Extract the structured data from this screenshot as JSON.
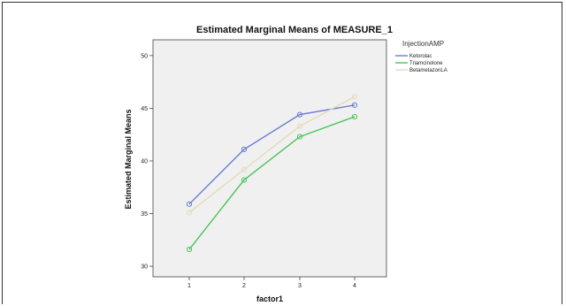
{
  "chart_data": {
    "type": "line",
    "title": "Estimated Marginal Means of MEASURE_1",
    "xlabel": "factor1",
    "ylabel": "Estimated Marginal Means",
    "categories": [
      "1",
      "2",
      "3",
      "4"
    ],
    "ylim": [
      29,
      51.5
    ],
    "yticks": [
      30,
      35,
      40,
      45,
      50
    ],
    "grid": false,
    "legend_title": "InjectionAMP",
    "legend_position": "right",
    "series": [
      {
        "name": "Ketorolac",
        "values": [
          35.9,
          41.1,
          44.4,
          45.3
        ],
        "color": "#6b7bd0"
      },
      {
        "name": "Triamcinolone",
        "values": [
          31.6,
          38.2,
          42.3,
          44.2
        ],
        "color": "#4cc45a"
      },
      {
        "name": "BetametazonLA",
        "values": [
          35.1,
          39.2,
          43.3,
          46.1
        ],
        "color": "#e3dcb8"
      }
    ],
    "plot_background": "#f0f0f0"
  }
}
